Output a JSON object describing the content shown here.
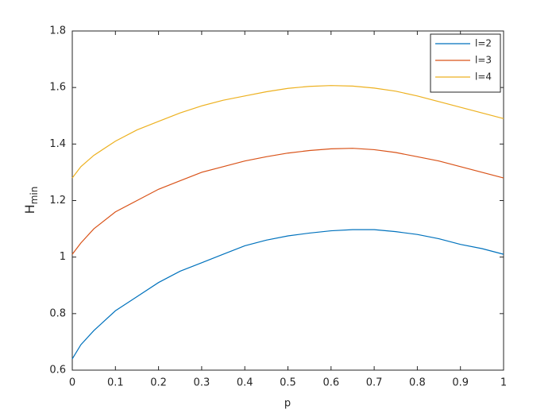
{
  "chart_data": {
    "type": "line",
    "xlabel": "p",
    "ylabel": "H",
    "ylabel_subscript": "min",
    "x": [
      0,
      0.02,
      0.05,
      0.1,
      0.15,
      0.2,
      0.25,
      0.3,
      0.35,
      0.4,
      0.45,
      0.5,
      0.55,
      0.6,
      0.65,
      0.7,
      0.75,
      0.8,
      0.85,
      0.9,
      0.95,
      1
    ],
    "series": [
      {
        "name": "l=2",
        "color": "#0072bd",
        "values": [
          0.64,
          0.69,
          0.74,
          0.81,
          0.86,
          0.91,
          0.95,
          0.98,
          1.01,
          1.04,
          1.06,
          1.075,
          1.085,
          1.093,
          1.097,
          1.097,
          1.09,
          1.08,
          1.065,
          1.045,
          1.03,
          1.01
        ]
      },
      {
        "name": "l=3",
        "color": "#d95319",
        "values": [
          1.01,
          1.05,
          1.1,
          1.16,
          1.2,
          1.24,
          1.27,
          1.3,
          1.32,
          1.34,
          1.355,
          1.368,
          1.377,
          1.383,
          1.385,
          1.38,
          1.37,
          1.355,
          1.34,
          1.32,
          1.3,
          1.28
        ]
      },
      {
        "name": "l=4",
        "color": "#edb120",
        "values": [
          1.28,
          1.32,
          1.36,
          1.41,
          1.45,
          1.48,
          1.51,
          1.535,
          1.555,
          1.57,
          1.585,
          1.597,
          1.604,
          1.607,
          1.605,
          1.598,
          1.587,
          1.57,
          1.55,
          1.53,
          1.51,
          1.49
        ]
      }
    ],
    "xlim": [
      0,
      1
    ],
    "xticks": [
      0,
      0.1,
      0.2,
      0.3,
      0.4,
      0.5,
      0.6,
      0.7,
      0.8,
      0.9,
      1
    ],
    "ylim": [
      0.6,
      1.8
    ],
    "yticks": [
      0.6,
      0.8,
      1,
      1.2,
      1.4,
      1.6,
      1.8
    ],
    "grid": false,
    "legend": "northeast"
  }
}
